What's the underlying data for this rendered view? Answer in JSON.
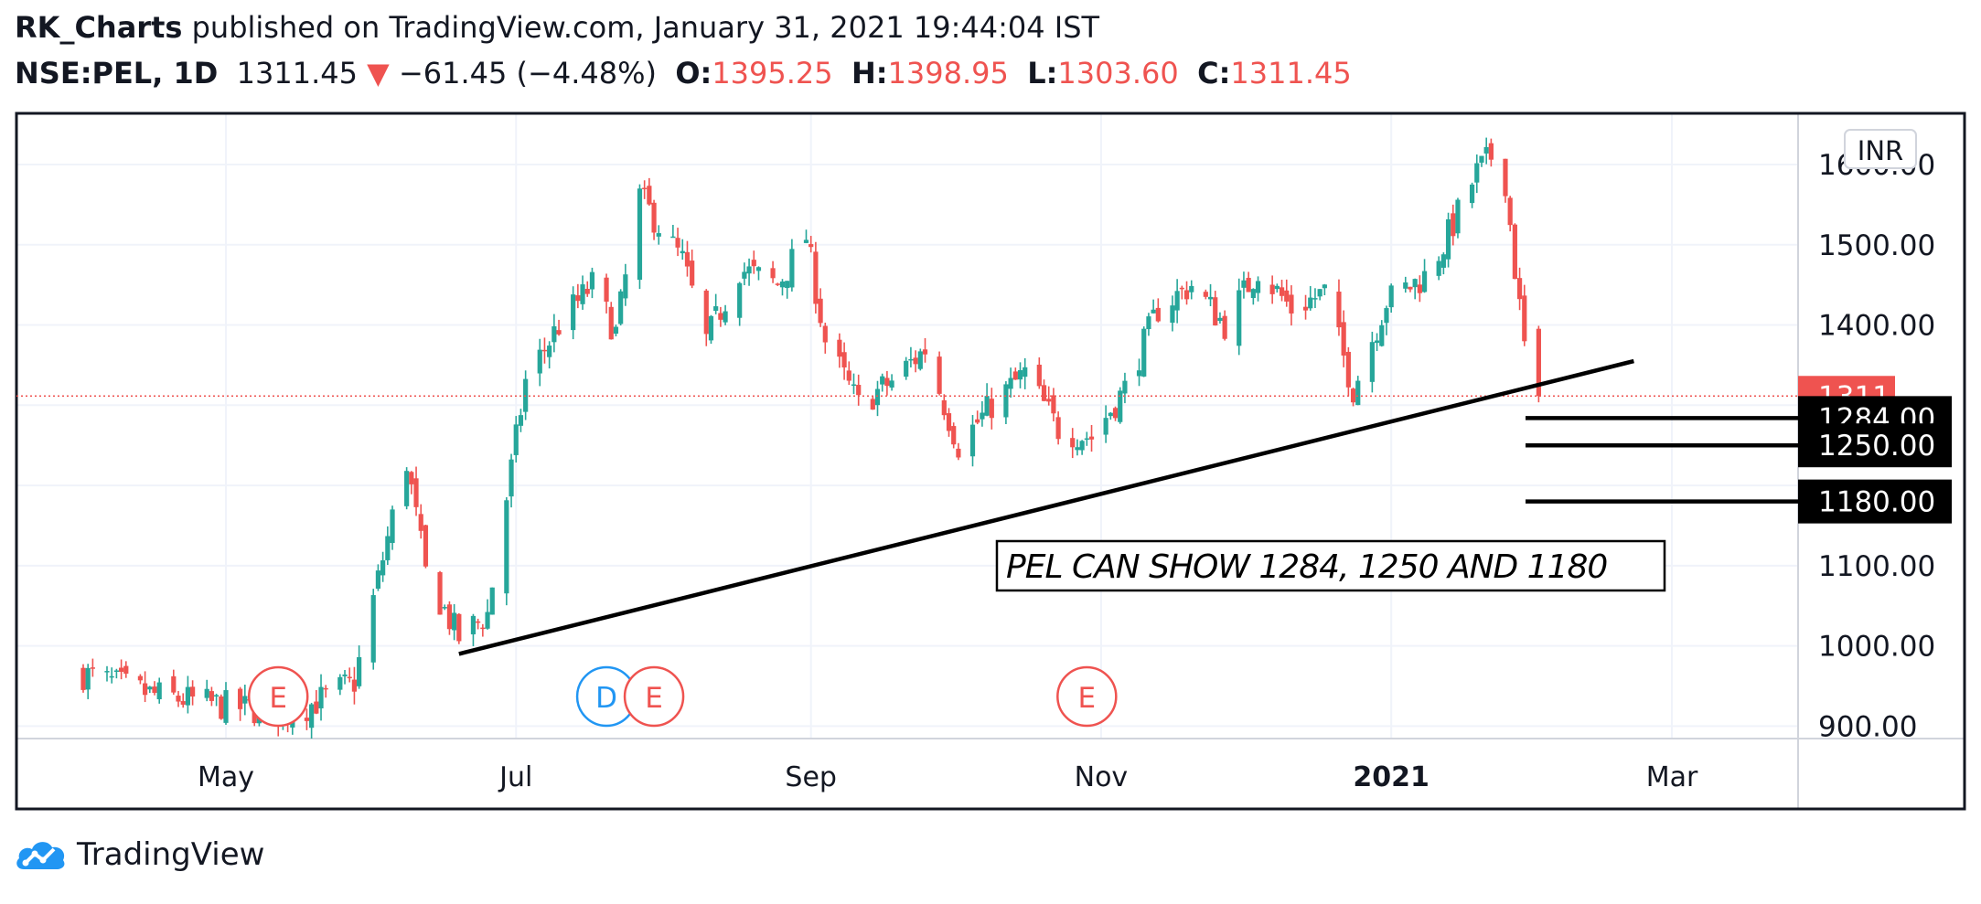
{
  "header": {
    "author": "RK_Charts",
    "published": "published on TradingView.com, January 31, 2021 19:44:04 IST",
    "symbol": "NSE:PEL, 1D",
    "last": "1311.45",
    "change": "−61.45 (−4.48%)",
    "o_label": "O:",
    "o_value": "1395.25",
    "h_label": "H:",
    "h_value": "1398.95",
    "l_label": "L:",
    "l_value": "1303.60",
    "c_label": "C:",
    "c_value": "1311.45"
  },
  "footer": {
    "brand": "TradingView"
  },
  "colors": {
    "up": "#26a69a",
    "down": "#ef5350",
    "grid": "#f0f3fa",
    "text": "#131722",
    "dividend": "#2196f3"
  },
  "chart_data": {
    "type": "candlestick",
    "currency": "INR",
    "ylim": [
      900,
      1650
    ],
    "y_ticks": [
      "900.00",
      "1000.00",
      "1100.00",
      "1400.00",
      "1500.00",
      "1600.00"
    ],
    "x_ticks": [
      "May",
      "Jul",
      "Sep",
      "Nov",
      "2021",
      "Mar"
    ],
    "x_tick_dates": [
      "2020-05-01",
      "2020-07-01",
      "2020-09-01",
      "2020-11-01",
      "2021-01-01",
      "2021-03-01"
    ],
    "last_price_label": "1311.45",
    "targets": [
      "1284.00",
      "1250.00",
      "1180.00"
    ],
    "target_values": [
      1284,
      1250,
      1180
    ],
    "annotation": "PEL CAN SHOW 1284, 1250 AND 1180",
    "trendline": [
      {
        "date": "2020-06-19",
        "price": 990
      },
      {
        "date": "2021-02-21",
        "price": 1355
      }
    ],
    "events": [
      {
        "label": "E",
        "type": "earnings",
        "date": "2020-05-12"
      },
      {
        "label": "D",
        "type": "dividend",
        "date": "2020-07-20"
      },
      {
        "label": "E",
        "type": "earnings",
        "date": "2020-07-30"
      },
      {
        "label": "E",
        "type": "earnings",
        "date": "2020-10-29"
      }
    ],
    "close_path": [
      {
        "date": "2020-04-01",
        "close": 965
      },
      {
        "date": "2020-04-15",
        "close": 940
      },
      {
        "date": "2020-05-01",
        "close": 925
      },
      {
        "date": "2020-05-15",
        "close": 915
      },
      {
        "date": "2020-05-28",
        "close": 955
      },
      {
        "date": "2020-06-05",
        "close": 1160
      },
      {
        "date": "2020-06-08",
        "close": 1230
      },
      {
        "date": "2020-06-12",
        "close": 1090
      },
      {
        "date": "2020-06-19",
        "close": 1010
      },
      {
        "date": "2020-06-25",
        "close": 1040
      },
      {
        "date": "2020-07-03",
        "close": 1330
      },
      {
        "date": "2020-07-10",
        "close": 1400
      },
      {
        "date": "2020-07-17",
        "close": 1450
      },
      {
        "date": "2020-07-22",
        "close": 1390
      },
      {
        "date": "2020-07-27",
        "close": 1560
      },
      {
        "date": "2020-08-05",
        "close": 1480
      },
      {
        "date": "2020-08-10",
        "close": 1380
      },
      {
        "date": "2020-08-17",
        "close": 1470
      },
      {
        "date": "2020-08-25",
        "close": 1450
      },
      {
        "date": "2020-08-31",
        "close": 1510
      },
      {
        "date": "2020-09-04",
        "close": 1380
      },
      {
        "date": "2020-09-11",
        "close": 1300
      },
      {
        "date": "2020-09-18",
        "close": 1330
      },
      {
        "date": "2020-09-25",
        "close": 1370
      },
      {
        "date": "2020-10-02",
        "close": 1250
      },
      {
        "date": "2020-10-09",
        "close": 1300
      },
      {
        "date": "2020-10-16",
        "close": 1340
      },
      {
        "date": "2020-10-23",
        "close": 1270
      },
      {
        "date": "2020-10-30",
        "close": 1260
      },
      {
        "date": "2020-11-06",
        "close": 1320
      },
      {
        "date": "2020-11-13",
        "close": 1420
      },
      {
        "date": "2020-11-20",
        "close": 1450
      },
      {
        "date": "2020-11-27",
        "close": 1400
      },
      {
        "date": "2020-12-04",
        "close": 1470
      },
      {
        "date": "2020-12-11",
        "close": 1420
      },
      {
        "date": "2020-12-18",
        "close": 1440
      },
      {
        "date": "2020-12-24",
        "close": 1320
      },
      {
        "date": "2020-12-31",
        "close": 1430
      },
      {
        "date": "2021-01-08",
        "close": 1460
      },
      {
        "date": "2021-01-12",
        "close": 1500
      },
      {
        "date": "2021-01-19",
        "close": 1590
      },
      {
        "date": "2021-01-22",
        "close": 1610
      },
      {
        "date": "2021-01-25",
        "close": 1580
      },
      {
        "date": "2021-01-27",
        "close": 1470
      },
      {
        "date": "2021-01-29",
        "close": 1373
      },
      {
        "date": "2021-02-01",
        "close": 1311.45
      }
    ],
    "last_candle": {
      "open": 1395.25,
      "high": 1398.95,
      "low": 1303.6,
      "close": 1311.45
    }
  }
}
